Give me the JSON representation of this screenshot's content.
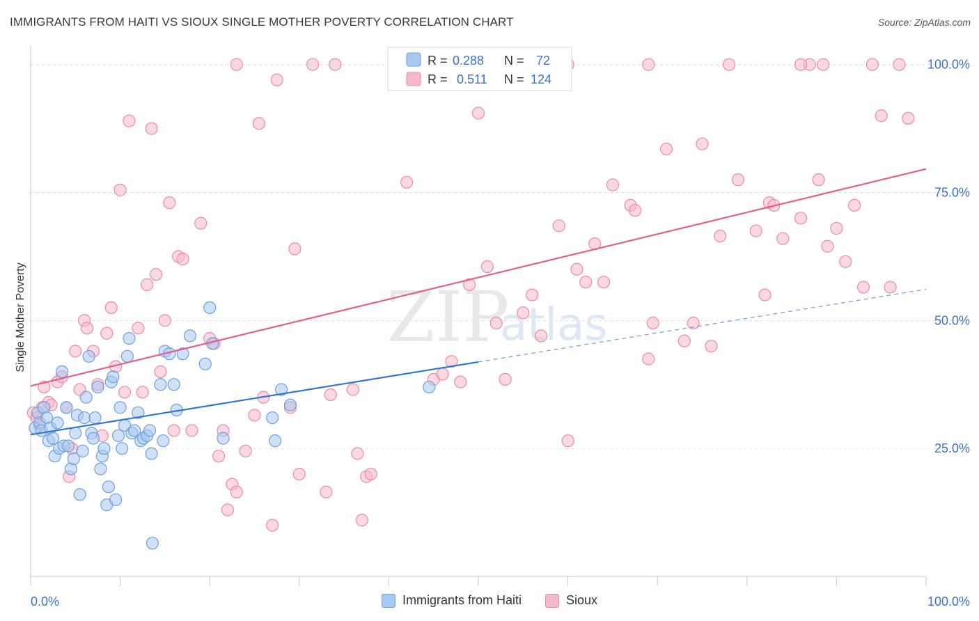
{
  "header": {
    "title": "IMMIGRANTS FROM HAITI VS SIOUX SINGLE MOTHER POVERTY CORRELATION CHART",
    "source": "Source: ZipAtlas.com"
  },
  "watermark": {
    "zip": "ZIP",
    "atlas": "atlas"
  },
  "colors": {
    "haiti_fill": "#a8c8f0",
    "haiti_stroke": "#6f9fdc",
    "haiti_line": "#2f74d0",
    "sioux_fill": "#f7b8cb",
    "sioux_stroke": "#ea8aa8",
    "sioux_line": "#e0608a",
    "axis_text": "#3b72c4",
    "grid": "#dddddd"
  },
  "stats_legend": {
    "rows": [
      {
        "r_label": "R =",
        "r_value": "0.288",
        "n_label": "N =",
        "n_value": "72"
      },
      {
        "r_label": "R =",
        "r_value": "0.511",
        "n_label": "N =",
        "n_value": "124"
      }
    ]
  },
  "legend": {
    "haiti": "Immigrants from Haiti",
    "sioux": "Sioux"
  },
  "chart_data": {
    "type": "scatter",
    "title": "IMMIGRANTS FROM HAITI VS SIOUX SINGLE MOTHER POVERTY CORRELATION CHART",
    "xlabel": "",
    "ylabel": "Single Mother Poverty",
    "xlim": [
      0,
      100
    ],
    "ylim": [
      0,
      102
    ],
    "x_tick_labels": [
      "0.0%",
      "100.0%"
    ],
    "y_ticks": [
      25,
      50,
      75,
      100
    ],
    "y_tick_labels": [
      "25.0%",
      "50.0%",
      "75.0%",
      "100.0%"
    ],
    "grid": true,
    "series": [
      {
        "name": "Immigrants from Haiti",
        "R": 0.288,
        "N": 72,
        "trend": {
          "x0": 0,
          "y0": 27.7,
          "x1": 50,
          "y1": 41.9,
          "dash_to_x": 100,
          "dash_to_y": 56.1
        },
        "points": [
          [
            0.5,
            29
          ],
          [
            0.8,
            32
          ],
          [
            1,
            30
          ],
          [
            1.2,
            28.5
          ],
          [
            1.5,
            33
          ],
          [
            1.8,
            31
          ],
          [
            2,
            26.5
          ],
          [
            2.2,
            29
          ],
          [
            2.5,
            27
          ],
          [
            2.7,
            23.5
          ],
          [
            3,
            30
          ],
          [
            3.2,
            25
          ],
          [
            3.5,
            40
          ],
          [
            3.7,
            25.5
          ],
          [
            4,
            33
          ],
          [
            4.2,
            25.5
          ],
          [
            4.5,
            21
          ],
          [
            4.8,
            23
          ],
          [
            5,
            28
          ],
          [
            5.2,
            31.5
          ],
          [
            5.5,
            16
          ],
          [
            5.8,
            24.5
          ],
          [
            6,
            31
          ],
          [
            6.2,
            35
          ],
          [
            6.5,
            43
          ],
          [
            6.8,
            28
          ],
          [
            7,
            27
          ],
          [
            7.2,
            31
          ],
          [
            7.5,
            37
          ],
          [
            7.8,
            21
          ],
          [
            8,
            23.5
          ],
          [
            8.2,
            25
          ],
          [
            8.5,
            14
          ],
          [
            8.7,
            17.5
          ],
          [
            9,
            38
          ],
          [
            9.2,
            39
          ],
          [
            9.5,
            15
          ],
          [
            9.8,
            27.5
          ],
          [
            10,
            33
          ],
          [
            10.2,
            25
          ],
          [
            10.5,
            29.5
          ],
          [
            10.8,
            43
          ],
          [
            11,
            46.5
          ],
          [
            11.3,
            28
          ],
          [
            11.6,
            28.5
          ],
          [
            12,
            32
          ],
          [
            12.3,
            26.5
          ],
          [
            12.6,
            27
          ],
          [
            13,
            27.5
          ],
          [
            13.3,
            28.5
          ],
          [
            13.6,
            6.5
          ],
          [
            13.5,
            24
          ],
          [
            14.5,
            37.5
          ],
          [
            14.8,
            26.5
          ],
          [
            15,
            44
          ],
          [
            15.5,
            43.5
          ],
          [
            16,
            37.5
          ],
          [
            16.3,
            32.5
          ],
          [
            17,
            43.5
          ],
          [
            17.8,
            47
          ],
          [
            19.5,
            41.5
          ],
          [
            20,
            52.5
          ],
          [
            20.3,
            45.5
          ],
          [
            21.5,
            27
          ],
          [
            27,
            31
          ],
          [
            27.3,
            26.5
          ],
          [
            28,
            36.5
          ],
          [
            29,
            33.5
          ],
          [
            44.5,
            37
          ]
        ]
      },
      {
        "name": "Sioux",
        "R": 0.511,
        "N": 124,
        "trend": {
          "x0": 0,
          "y0": 37.2,
          "x1": 100,
          "y1": 79.6
        },
        "points": [
          [
            0.3,
            32
          ],
          [
            0.7,
            31
          ],
          [
            1,
            29.5
          ],
          [
            1.3,
            33
          ],
          [
            1.5,
            37
          ],
          [
            2,
            34
          ],
          [
            2.3,
            33.5
          ],
          [
            3,
            38
          ],
          [
            3.5,
            39
          ],
          [
            4,
            33
          ],
          [
            4.3,
            19.5
          ],
          [
            4.6,
            25
          ],
          [
            5,
            44
          ],
          [
            5.5,
            36.5
          ],
          [
            6,
            50
          ],
          [
            6.3,
            48.5
          ],
          [
            7,
            44
          ],
          [
            7.5,
            37.5
          ],
          [
            8,
            27.5
          ],
          [
            8.5,
            47.5
          ],
          [
            9,
            52.5
          ],
          [
            9.5,
            41
          ],
          [
            10,
            75.5
          ],
          [
            10.5,
            36
          ],
          [
            11,
            89
          ],
          [
            12,
            48.5
          ],
          [
            12.5,
            36
          ],
          [
            13,
            57
          ],
          [
            13.5,
            87.5
          ],
          [
            14,
            59
          ],
          [
            14.5,
            40
          ],
          [
            15,
            50
          ],
          [
            15.5,
            73
          ],
          [
            16,
            28.5
          ],
          [
            16.5,
            62.5
          ],
          [
            17,
            62
          ],
          [
            18,
            28.5
          ],
          [
            19,
            69
          ],
          [
            20,
            46.5
          ],
          [
            20.5,
            45.5
          ],
          [
            21,
            23.5
          ],
          [
            21.5,
            28.5
          ],
          [
            22,
            13
          ],
          [
            22.5,
            18
          ],
          [
            23,
            16.5
          ],
          [
            24,
            24.5
          ],
          [
            25,
            31.5
          ],
          [
            25.5,
            88.5
          ],
          [
            26,
            35
          ],
          [
            27,
            10
          ],
          [
            27.5,
            97
          ],
          [
            29,
            33
          ],
          [
            29.5,
            64
          ],
          [
            30,
            20
          ],
          [
            31.5,
            100
          ],
          [
            33,
            16.5
          ],
          [
            33.5,
            35.5
          ],
          [
            36,
            36.5
          ],
          [
            36.5,
            24
          ],
          [
            37,
            11
          ],
          [
            37.5,
            19.5
          ],
          [
            38,
            20
          ],
          [
            42,
            77
          ],
          [
            45,
            38.5
          ],
          [
            46,
            39.5
          ],
          [
            47,
            42
          ],
          [
            48,
            38
          ],
          [
            49,
            57
          ],
          [
            50,
            90.5
          ],
          [
            51,
            60.5
          ],
          [
            52,
            49.5
          ],
          [
            53,
            38.5
          ],
          [
            55,
            51.5
          ],
          [
            56,
            55
          ],
          [
            57,
            47
          ],
          [
            59,
            68.5
          ],
          [
            60,
            26.5
          ],
          [
            61,
            60
          ],
          [
            62,
            57.5
          ],
          [
            63,
            65
          ],
          [
            64,
            57.5
          ],
          [
            65,
            76.5
          ],
          [
            67,
            72.5
          ],
          [
            67.5,
            71.5
          ],
          [
            69,
            42.5
          ],
          [
            69.5,
            49.5
          ],
          [
            71,
            83.5
          ],
          [
            73,
            46
          ],
          [
            74,
            49.5
          ],
          [
            75,
            84.5
          ],
          [
            76,
            45
          ],
          [
            77,
            66.5
          ],
          [
            79,
            77.5
          ],
          [
            81,
            67.5
          ],
          [
            82,
            55
          ],
          [
            82.5,
            73
          ],
          [
            83,
            72.5
          ],
          [
            84,
            66
          ],
          [
            86,
            70
          ],
          [
            87,
            100
          ],
          [
            88,
            77.5
          ],
          [
            89,
            64.5
          ],
          [
            90,
            68
          ],
          [
            91,
            61.5
          ],
          [
            92,
            72.5
          ],
          [
            93,
            56.5
          ],
          [
            94,
            100
          ],
          [
            95,
            90
          ],
          [
            96,
            56.5
          ],
          [
            97,
            100
          ],
          [
            98,
            89.5
          ],
          [
            52,
            100
          ],
          [
            23,
            100
          ],
          [
            34,
            100
          ],
          [
            48,
            100
          ],
          [
            56,
            100
          ],
          [
            60,
            100
          ],
          [
            69,
            100
          ],
          [
            78,
            100
          ],
          [
            86,
            100
          ],
          [
            88.5,
            100
          ]
        ]
      }
    ]
  }
}
